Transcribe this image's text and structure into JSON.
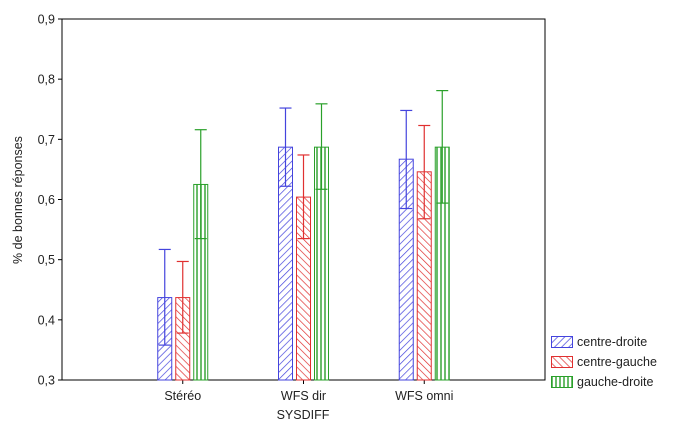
{
  "chart_data": {
    "type": "bar",
    "xlabel": "SYSDIFF",
    "ylabel": "% de bonnes réponses",
    "ylim": [
      0.3,
      0.9
    ],
    "yticks": [
      "0,3",
      "0,4",
      "0,5",
      "0,6",
      "0,7",
      "0,8",
      "0,9"
    ],
    "categories": [
      "Stéréo",
      "WFS dir",
      "WFS omni"
    ],
    "series": [
      {
        "name": "centre-droite",
        "color": "#4444dd",
        "values": [
          0.437,
          0.687,
          0.667
        ],
        "err_low": [
          0.358,
          0.622,
          0.585
        ],
        "err_high": [
          0.517,
          0.752,
          0.748
        ]
      },
      {
        "name": "centre-gauche",
        "color": "#e03030",
        "values": [
          0.437,
          0.604,
          0.646
        ],
        "err_low": [
          0.378,
          0.535,
          0.568
        ],
        "err_high": [
          0.497,
          0.674,
          0.723
        ]
      },
      {
        "name": "gauche-droite",
        "color": "#2aa02a",
        "values": [
          0.625,
          0.687,
          0.687
        ],
        "err_low": [
          0.535,
          0.617,
          0.594
        ],
        "err_high": [
          0.716,
          0.759,
          0.781
        ]
      }
    ],
    "grid": false,
    "legend_position": "bottom-right"
  }
}
